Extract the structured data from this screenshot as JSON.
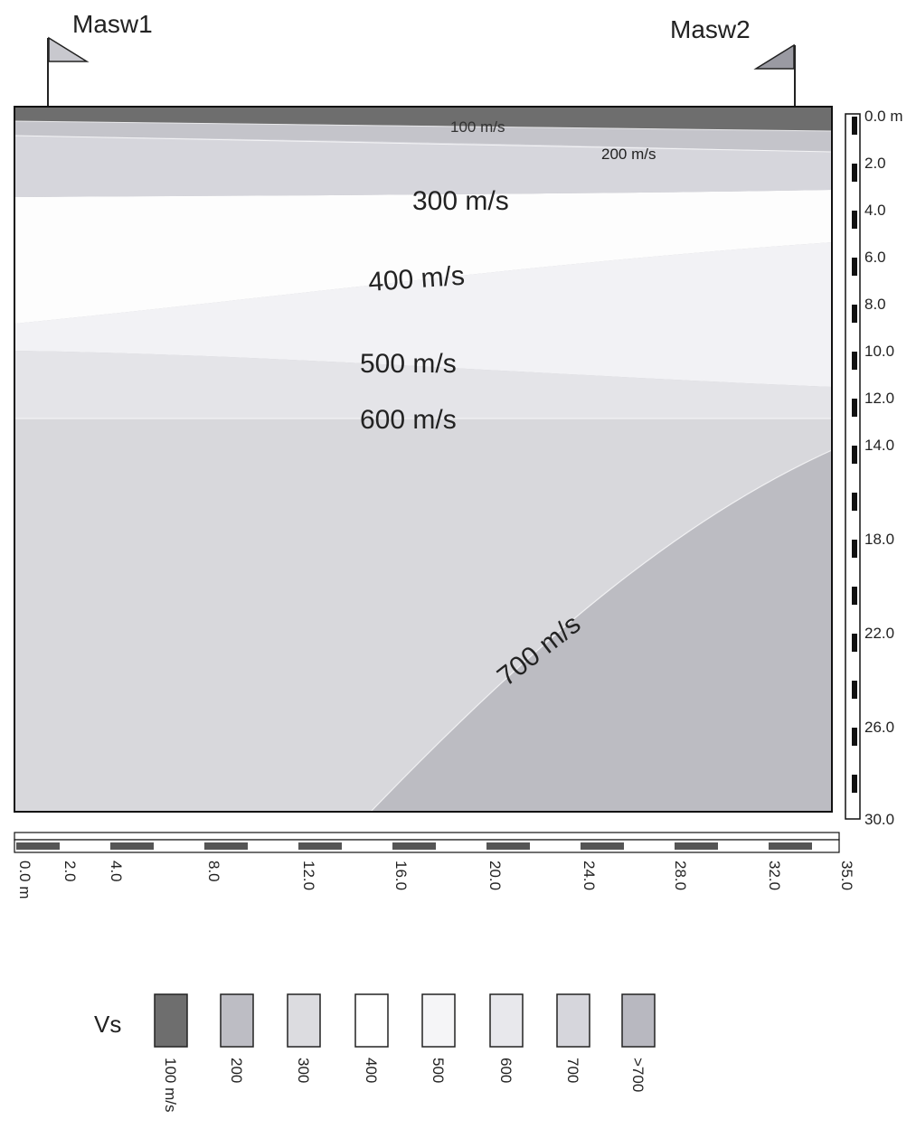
{
  "markers": {
    "left": "Masw1",
    "right": "Masw2"
  },
  "layer_labels": {
    "l100": "100 m/s",
    "l200": "200 m/s",
    "l300": "300 m/s",
    "l400": "400 m/s",
    "l500": "500 m/s",
    "l600": "600 m/s",
    "l700": "700 m/s"
  },
  "depth_axis": {
    "labels": [
      "0.0 m",
      "2.0",
      "4.0",
      "6.0",
      "8.0",
      "10.0",
      "12.0",
      "14.0",
      "18.0",
      "22.0",
      "26.0",
      "30.0"
    ]
  },
  "distance_axis": {
    "labels": [
      "0.0 m",
      "2.0",
      "4.0",
      "8.0",
      "12.0",
      "16.0",
      "20.0",
      "24.0",
      "28.0",
      "32.0",
      "35.0"
    ]
  },
  "legend": {
    "title": "Vs",
    "items": [
      {
        "label": "100 m/s",
        "color": "#6e6e6e"
      },
      {
        "label": "200",
        "color": "#bdbdc4"
      },
      {
        "label": "300",
        "color": "#dcdce0"
      },
      {
        "label": "400",
        "color": "#ffffff"
      },
      {
        "label": "500",
        "color": "#f5f5f7"
      },
      {
        "label": "600",
        "color": "#e8e8ec"
      },
      {
        "label": "700",
        "color": "#d6d6dc"
      },
      {
        "label": ">700",
        "color": "#b8b8c0"
      }
    ]
  },
  "colors": {
    "v100": "#6e6e6e",
    "v200": "#c4c4ca",
    "v300": "#d6d6dc",
    "v400": "#fdfdfd",
    "v500": "#f2f2f5",
    "v600": "#e4e4e8",
    "v700": "#d8d8dc",
    "vgt700": "#bcbcc2"
  }
}
